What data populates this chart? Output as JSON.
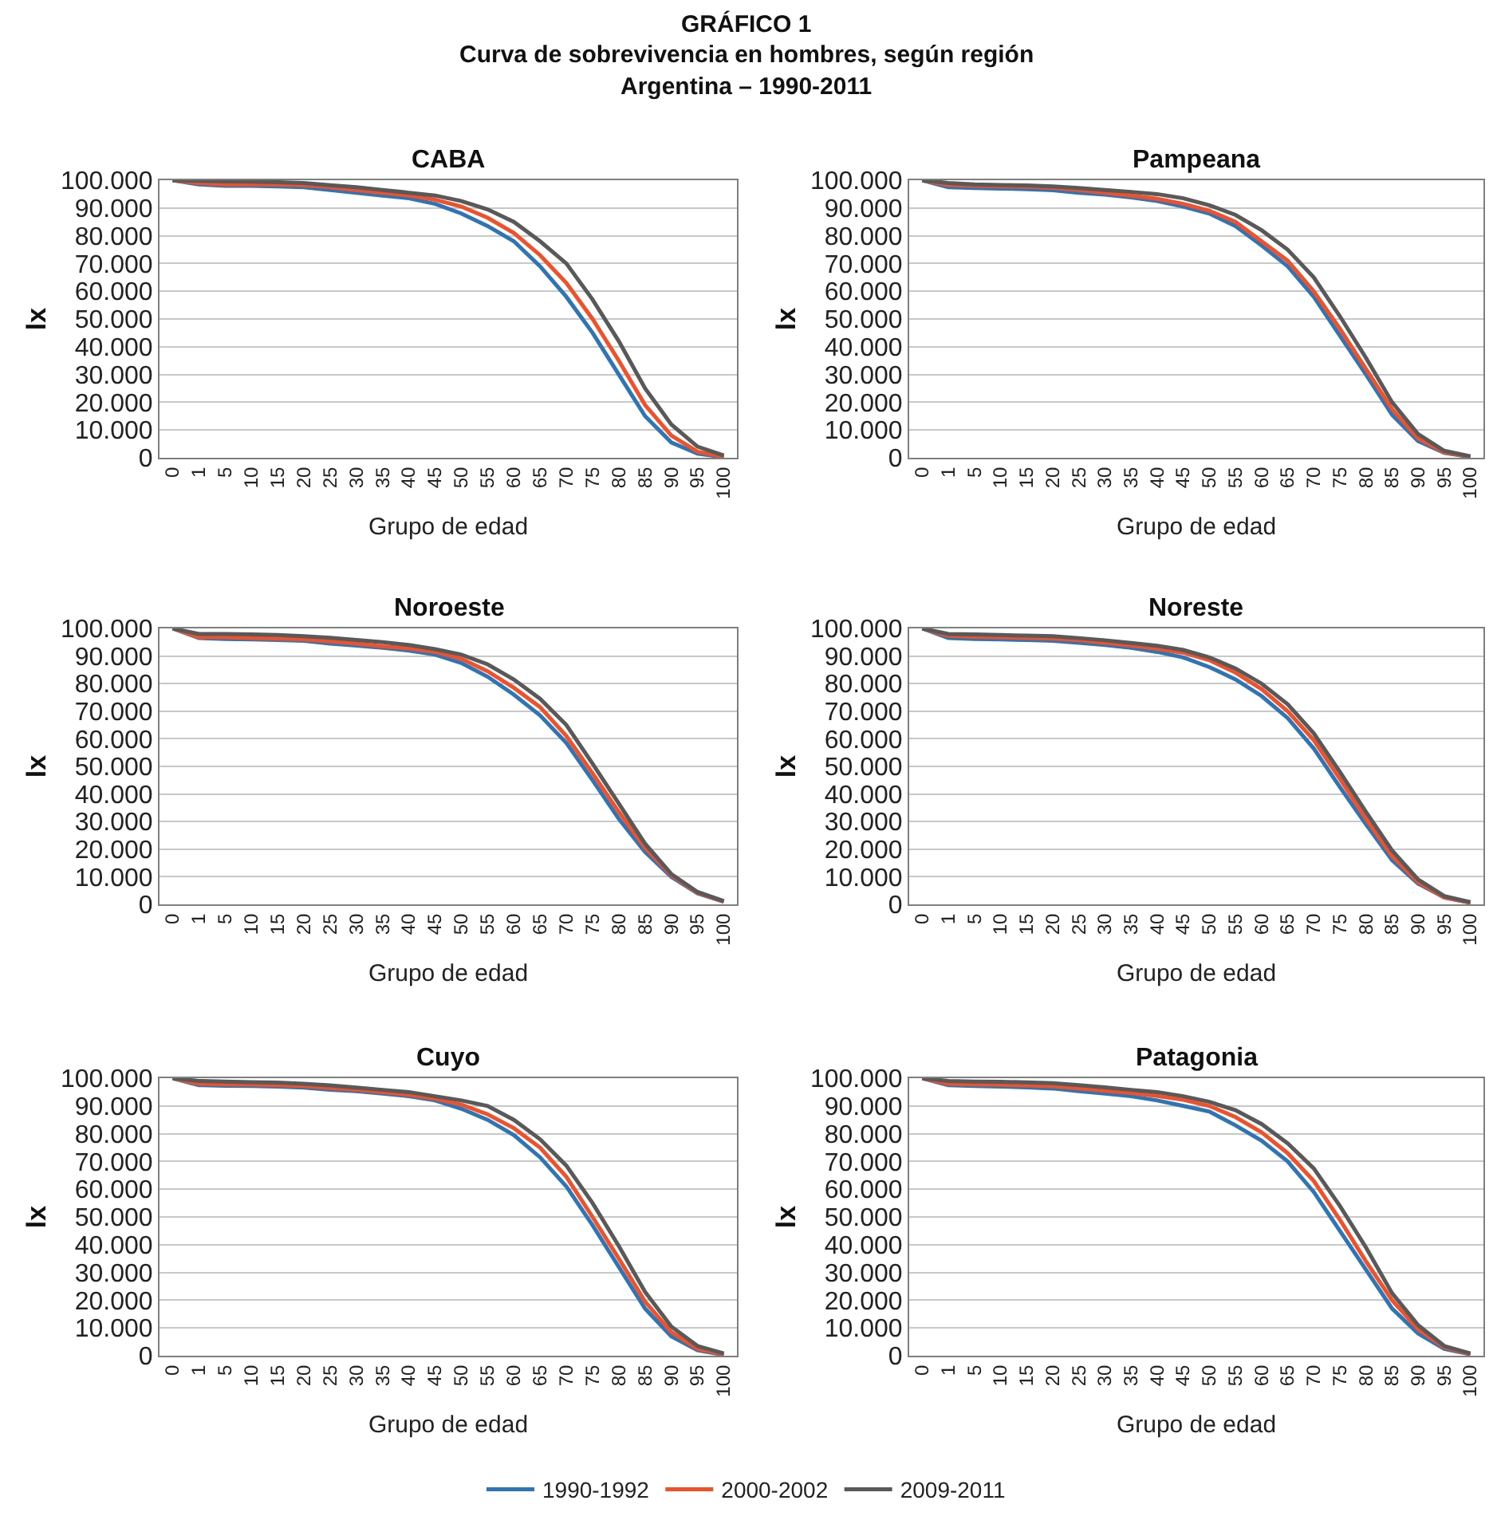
{
  "chart_data": [
    {
      "type": "line",
      "title": "CABA",
      "annotations": [
        "GRÁFICO 1",
        "Curva de sobrevivencia en hombres, según región",
        "Argentina – 1990-2011"
      ],
      "xlabel": "Grupo de edad",
      "ylabel": "lx",
      "grid": "y",
      "legend": "bottom",
      "categories": [
        "0",
        "1",
        "5",
        "10",
        "15",
        "20",
        "25",
        "30",
        "35",
        "40",
        "45",
        "50",
        "55",
        "60",
        "65",
        "70",
        "75",
        "80",
        "85",
        "90",
        "95",
        "100"
      ],
      "ylim": [
        0,
        100000
      ],
      "yticks": [
        0,
        {
          "value": 10000,
          "label": "10.000"
        },
        {
          "value": 20000,
          "label": "20.000"
        },
        {
          "value": 30000,
          "label": "30.000"
        },
        {
          "value": 40000,
          "label": "40.000"
        },
        {
          "value": 50000,
          "label": "50.000"
        },
        {
          "value": 60000,
          "label": "60.000"
        },
        {
          "value": 70000,
          "label": "70.000"
        },
        {
          "value": 80000,
          "label": "80.000"
        },
        {
          "value": 90000,
          "label": "90.000"
        },
        {
          "value": 100000,
          "label": "100.000"
        }
      ],
      "series": [
        {
          "name": "1990-1992",
          "color": "#2e75b6",
          "values": [
            100000,
            98500,
            98000,
            98000,
            97800,
            97500,
            96500,
            95500,
            94500,
            93500,
            91500,
            88000,
            83500,
            78000,
            69000,
            58000,
            45000,
            30000,
            15000,
            5500,
            1500,
            200
          ]
        },
        {
          "name": "2000-2002",
          "color": "#f0502a",
          "values": [
            100000,
            99000,
            98500,
            98500,
            98400,
            98200,
            97500,
            96500,
            95500,
            94500,
            93000,
            90500,
            86500,
            81000,
            73000,
            63000,
            50000,
            35000,
            19000,
            8000,
            2200,
            300
          ]
        },
        {
          "name": "2009-2011",
          "color": "#595959",
          "values": [
            100000,
            99800,
            99600,
            99500,
            99300,
            99000,
            98200,
            97500,
            96500,
            95500,
            94500,
            92500,
            89500,
            85000,
            78000,
            70000,
            57000,
            42000,
            25000,
            12000,
            4000,
            800
          ]
        }
      ]
    },
    {
      "type": "line",
      "title": "Pampeana",
      "xlabel": "Grupo de edad",
      "ylabel": "lx",
      "grid": "y",
      "categories": [
        "0",
        "1",
        "5",
        "10",
        "15",
        "20",
        "25",
        "30",
        "35",
        "40",
        "45",
        "50",
        "55",
        "60",
        "65",
        "70",
        "75",
        "80",
        "85",
        "90",
        "95",
        "100"
      ],
      "ylim": [
        0,
        100000
      ],
      "yticks": [
        0,
        {
          "value": 10000,
          "label": "10.000"
        },
        {
          "value": 20000,
          "label": "20.000"
        },
        {
          "value": 30000,
          "label": "30.000"
        },
        {
          "value": 40000,
          "label": "40.000"
        },
        {
          "value": 50000,
          "label": "50.000"
        },
        {
          "value": 60000,
          "label": "60.000"
        },
        {
          "value": 70000,
          "label": "70.000"
        },
        {
          "value": 80000,
          "label": "80.000"
        },
        {
          "value": 90000,
          "label": "90.000"
        },
        {
          "value": 100000,
          "label": "100.000"
        }
      ],
      "series": [
        {
          "color": "#2e75b6",
          "values": [
            100000,
            97500,
            97200,
            97000,
            96800,
            96400,
            95500,
            94800,
            93800,
            92500,
            90500,
            88000,
            83500,
            76500,
            69000,
            58000,
            44000,
            30000,
            15500,
            6000,
            1800,
            300
          ]
        },
        {
          "color": "#f0502a",
          "values": [
            100000,
            98300,
            98000,
            97800,
            97600,
            97300,
            96500,
            95500,
            94500,
            93300,
            91500,
            89000,
            85000,
            78000,
            71000,
            60000,
            46500,
            32000,
            17500,
            7000,
            2000,
            300
          ]
        },
        {
          "color": "#595959",
          "values": [
            100000,
            99000,
            98500,
            98300,
            98100,
            97800,
            97200,
            96500,
            95800,
            95000,
            93500,
            91000,
            87500,
            82000,
            75000,
            65000,
            51000,
            36000,
            20000,
            8500,
            2500,
            500
          ]
        }
      ]
    },
    {
      "type": "line",
      "title": "Noroeste",
      "xlabel": "Grupo de edad",
      "ylabel": "lx",
      "grid": "y",
      "categories": [
        "0",
        "1",
        "5",
        "10",
        "15",
        "20",
        "25",
        "30",
        "35",
        "40",
        "45",
        "50",
        "55",
        "60",
        "65",
        "70",
        "75",
        "80",
        "85",
        "90",
        "95",
        "100"
      ],
      "ylim": [
        0,
        100000
      ],
      "yticks": [
        0,
        {
          "value": 10000,
          "label": "10.000"
        },
        {
          "value": 20000,
          "label": "20.000"
        },
        {
          "value": 30000,
          "label": "30.000"
        },
        {
          "value": 40000,
          "label": "40.000"
        },
        {
          "value": 50000,
          "label": "50.000"
        },
        {
          "value": 60000,
          "label": "60.000"
        },
        {
          "value": 70000,
          "label": "70.000"
        },
        {
          "value": 80000,
          "label": "80.000"
        },
        {
          "value": 90000,
          "label": "90.000"
        },
        {
          "value": 100000,
          "label": "100.000"
        }
      ],
      "series": [
        {
          "color": "#2e75b6",
          "values": [
            100000,
            96500,
            96200,
            96000,
            95800,
            95500,
            94500,
            93800,
            93000,
            92000,
            90500,
            87500,
            82500,
            76000,
            68500,
            58500,
            45000,
            31000,
            19000,
            10000,
            4000,
            1000
          ]
        },
        {
          "color": "#f0502a",
          "values": [
            100000,
            96800,
            96800,
            96500,
            96300,
            96000,
            95300,
            94500,
            93500,
            92800,
            91500,
            89000,
            84500,
            78500,
            71500,
            61000,
            47500,
            33500,
            20500,
            10500,
            4200,
            1000
          ]
        },
        {
          "color": "#595959",
          "values": [
            100000,
            98000,
            98000,
            97800,
            97600,
            97200,
            96600,
            95800,
            95000,
            94000,
            92500,
            90500,
            87000,
            81500,
            74500,
            65000,
            51000,
            36500,
            22000,
            11000,
            4500,
            1200
          ]
        }
      ]
    },
    {
      "type": "line",
      "title": "Noreste",
      "xlabel": "Grupo de edad",
      "ylabel": "lx",
      "grid": "y",
      "categories": [
        "0",
        "1",
        "5",
        "10",
        "15",
        "20",
        "25",
        "30",
        "35",
        "40",
        "45",
        "50",
        "55",
        "60",
        "65",
        "70",
        "75",
        "80",
        "85",
        "90",
        "95",
        "100"
      ],
      "ylim": [
        0,
        100000
      ],
      "yticks": [
        0,
        {
          "value": 10000,
          "label": "10.000"
        },
        {
          "value": 20000,
          "label": "20.000"
        },
        {
          "value": 30000,
          "label": "30.000"
        },
        {
          "value": 40000,
          "label": "40.000"
        },
        {
          "value": 50000,
          "label": "50.000"
        },
        {
          "value": 60000,
          "label": "60.000"
        },
        {
          "value": 70000,
          "label": "70.000"
        },
        {
          "value": 80000,
          "label": "80.000"
        },
        {
          "value": 90000,
          "label": "90.000"
        },
        {
          "value": 100000,
          "label": "100.000"
        }
      ],
      "series": [
        {
          "color": "#2e75b6",
          "values": [
            100000,
            96500,
            96200,
            96000,
            95800,
            95500,
            94800,
            94000,
            93000,
            91500,
            89500,
            86000,
            81500,
            75500,
            67500,
            56500,
            42500,
            29000,
            16000,
            7500,
            2500,
            600
          ]
        },
        {
          "color": "#f0502a",
          "values": [
            100000,
            97300,
            97000,
            96800,
            96600,
            96300,
            95700,
            94800,
            93800,
            92600,
            91200,
            88500,
            84000,
            78000,
            70000,
            59500,
            45500,
            31000,
            17500,
            8000,
            2500,
            600
          ]
        },
        {
          "color": "#595959",
          "values": [
            100000,
            98000,
            97800,
            97600,
            97400,
            97200,
            96500,
            95700,
            94700,
            93700,
            92200,
            89500,
            85500,
            80000,
            72500,
            62000,
            48000,
            33500,
            19500,
            9000,
            3000,
            800
          ]
        }
      ]
    },
    {
      "type": "line",
      "title": "Cuyo",
      "xlabel": "Grupo de edad",
      "ylabel": "lx",
      "grid": "y",
      "categories": [
        "0",
        "1",
        "5",
        "10",
        "15",
        "20",
        "25",
        "30",
        "35",
        "40",
        "45",
        "50",
        "55",
        "60",
        "65",
        "70",
        "75",
        "80",
        "85",
        "90",
        "95",
        "100"
      ],
      "ylim": [
        0,
        100000
      ],
      "yticks": [
        0,
        {
          "value": 10000,
          "label": "10.000"
        },
        {
          "value": 20000,
          "label": "20.000"
        },
        {
          "value": 30000,
          "label": "30.000"
        },
        {
          "value": 40000,
          "label": "40.000"
        },
        {
          "value": 50000,
          "label": "50.000"
        },
        {
          "value": 60000,
          "label": "60.000"
        },
        {
          "value": 70000,
          "label": "70.000"
        },
        {
          "value": 80000,
          "label": "80.000"
        },
        {
          "value": 90000,
          "label": "90.000"
        },
        {
          "value": 100000,
          "label": "100.000"
        }
      ],
      "series": [
        {
          "color": "#2e75b6",
          "values": [
            100000,
            97500,
            97300,
            97200,
            97000,
            96600,
            95800,
            95300,
            94500,
            93500,
            92000,
            89000,
            85000,
            79500,
            71500,
            61000,
            47000,
            32000,
            17000,
            7000,
            2000,
            300
          ]
        },
        {
          "color": "#f0502a",
          "values": [
            100000,
            98000,
            97800,
            97700,
            97500,
            97200,
            96500,
            95800,
            95000,
            94000,
            92600,
            90500,
            87000,
            82000,
            75000,
            64500,
            50000,
            35000,
            19500,
            8500,
            2500,
            500
          ]
        },
        {
          "color": "#595959",
          "values": [
            100000,
            99000,
            98800,
            98600,
            98400,
            98000,
            97400,
            96600,
            95800,
            95000,
            93500,
            92000,
            90000,
            85000,
            78000,
            68500,
            55000,
            39500,
            23000,
            10500,
            3500,
            800
          ]
        }
      ]
    },
    {
      "type": "line",
      "title": "Patagonia",
      "xlabel": "Grupo de edad",
      "ylabel": "lx",
      "grid": "y",
      "categories": [
        "0",
        "1",
        "5",
        "10",
        "15",
        "20",
        "25",
        "30",
        "35",
        "40",
        "45",
        "50",
        "55",
        "60",
        "65",
        "70",
        "75",
        "80",
        "85",
        "90",
        "95",
        "100"
      ],
      "ylim": [
        0,
        100000
      ],
      "yticks": [
        0,
        {
          "value": 10000,
          "label": "10.000"
        },
        {
          "value": 20000,
          "label": "20.000"
        },
        {
          "value": 30000,
          "label": "30.000"
        },
        {
          "value": 40000,
          "label": "40.000"
        },
        {
          "value": 50000,
          "label": "50.000"
        },
        {
          "value": 60000,
          "label": "60.000"
        },
        {
          "value": 70000,
          "label": "70.000"
        },
        {
          "value": 80000,
          "label": "80.000"
        },
        {
          "value": 90000,
          "label": "90.000"
        },
        {
          "value": 100000,
          "label": "100.000"
        }
      ],
      "series": [
        {
          "color": "#2e75b6",
          "values": [
            100000,
            97500,
            97200,
            97000,
            96700,
            96300,
            95300,
            94500,
            93500,
            92000,
            90000,
            88000,
            83000,
            77500,
            70000,
            59000,
            45000,
            31000,
            17000,
            8000,
            2500,
            500
          ]
        },
        {
          "color": "#f0502a",
          "values": [
            100000,
            98000,
            97800,
            97600,
            97400,
            97100,
            96300,
            95500,
            94700,
            93600,
            92200,
            90000,
            86000,
            80500,
            73000,
            63000,
            49000,
            34000,
            20000,
            9500,
            3000,
            600
          ]
        },
        {
          "color": "#595959",
          "values": [
            100000,
            99000,
            98800,
            98700,
            98500,
            98200,
            97500,
            96700,
            95800,
            95000,
            93500,
            91500,
            88500,
            83500,
            76500,
            67500,
            54000,
            39000,
            22500,
            11000,
            3500,
            800
          ]
        }
      ]
    }
  ]
}
